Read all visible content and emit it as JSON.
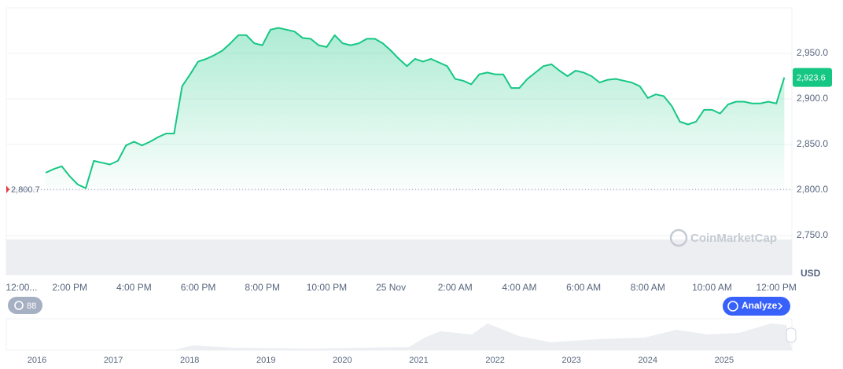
{
  "chart_data": {
    "type": "line",
    "categories": [
      null,
      null,
      "12:00...",
      null,
      null,
      null,
      null,
      null,
      "2:00 PM",
      null,
      null,
      null,
      null,
      null,
      null,
      null,
      "4:00 PM",
      null,
      null,
      null,
      null,
      null,
      null,
      null,
      "6:00 PM",
      null,
      null,
      null,
      null,
      null,
      null,
      null,
      "8:00 PM",
      null,
      null,
      null,
      null,
      null,
      null,
      null,
      "10:00 PM",
      null,
      null,
      null,
      null,
      null,
      null,
      null,
      "25 Nov",
      null,
      null,
      null,
      null,
      null,
      null,
      null,
      "2:00 AM",
      null,
      null,
      null,
      null,
      null,
      null,
      null,
      "4:00 AM",
      null,
      null,
      null,
      null,
      null,
      null,
      null,
      "6:00 AM",
      null,
      null,
      null,
      null,
      null,
      null,
      null,
      "8:00 AM",
      null,
      null,
      null,
      null,
      null,
      null,
      null,
      "10:00 AM",
      null,
      null,
      null,
      null,
      null,
      null,
      null,
      "12:00 PM",
      null
    ],
    "series": [
      {
        "color": "#16c784",
        "values": [
          null,
          null,
          null,
          null,
          null,
          2819,
          2823,
          2826,
          2815,
          2806,
          2802,
          2832,
          2830,
          2828,
          2832,
          2849,
          2853,
          2849,
          2853,
          2858,
          2862,
          2862,
          2914,
          2927,
          2941,
          2944,
          2948,
          2953,
          2961,
          2970,
          2970,
          2961,
          2959,
          2976,
          2978,
          2976,
          2974,
          2967,
          2966,
          2959,
          2957,
          2970,
          2961,
          2959,
          2961,
          2966,
          2966,
          2961,
          2953,
          2944,
          2936,
          2944,
          2941,
          2944,
          2940,
          2936,
          2922,
          2920,
          2916,
          2927,
          2929,
          2927,
          2927,
          2912,
          2912,
          2922,
          2929,
          2936,
          2938,
          2931,
          2925,
          2931,
          2929,
          2925,
          2918,
          2921,
          2922,
          2920,
          2918,
          2914,
          2901,
          2905,
          2903,
          2892,
          2875,
          2872,
          2875,
          2888,
          2888,
          2884,
          2894,
          2897,
          2897,
          2895,
          2895,
          2897,
          2895,
          2923.6
        ]
      }
    ],
    "ylim": [
      2750,
      3000
    ],
    "yticks": [
      {
        "value": 2750,
        "label": "2,750.0"
      },
      {
        "value": 2800,
        "label": "2,800.0"
      },
      {
        "value": 2850,
        "label": "2,850.0"
      },
      {
        "value": 2900,
        "label": "2,900.0"
      },
      {
        "value": 2950,
        "label": "2,950.0"
      }
    ],
    "grid": true,
    "open_value": {
      "value": 2800.7,
      "label": "2,800.7"
    },
    "last_price": {
      "value": 2923.6,
      "label": "2,923.6"
    },
    "currency": "USD",
    "watermark": "CoinMarketCap"
  },
  "controls": {
    "history_badge": "88",
    "analyze_button": "Analyze"
  },
  "navigator": {
    "years": [
      "2016",
      "2017",
      "2018",
      "2019",
      "2020",
      "2021",
      "2022",
      "2023",
      "2024",
      "2025"
    ]
  }
}
